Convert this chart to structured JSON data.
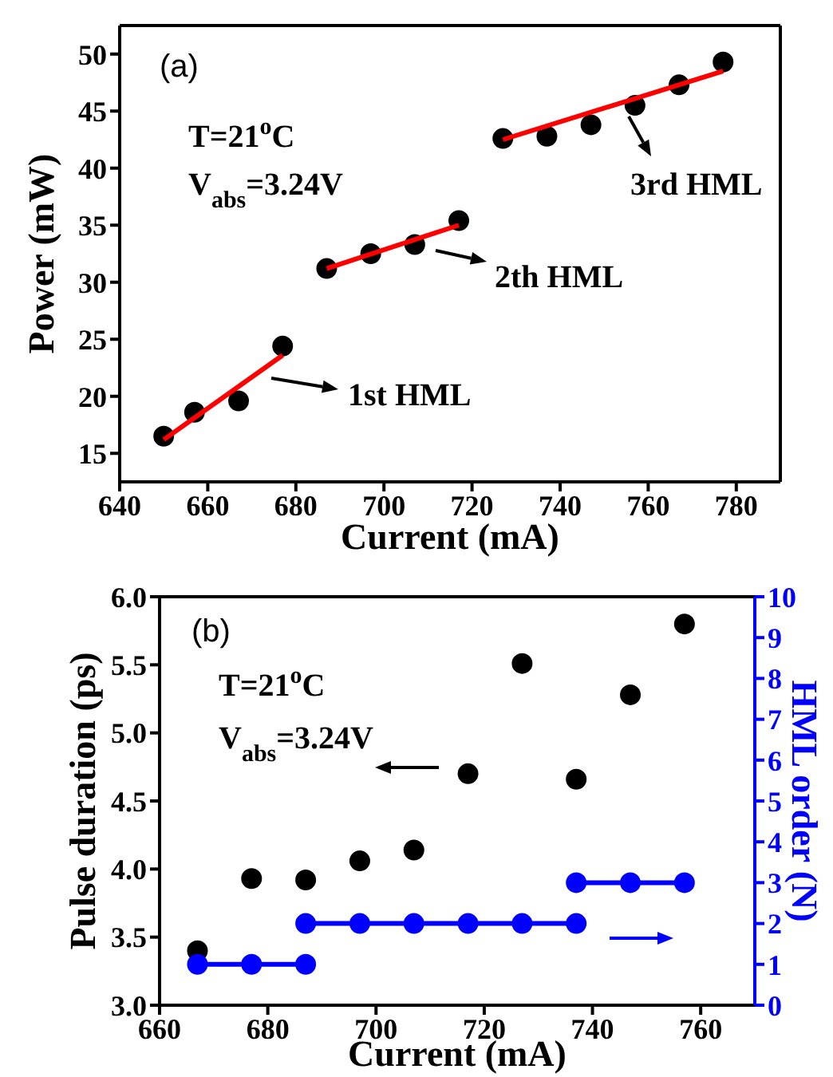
{
  "chart_data": [
    {
      "type": "scatter",
      "xlabel": "Current (mA)",
      "ylabel": "Power (mW)",
      "marker": "circle",
      "xlim": [
        640,
        790
      ],
      "xticks": [
        640,
        660,
        680,
        700,
        720,
        740,
        760,
        780
      ],
      "ylim": [
        12.5,
        52.5
      ],
      "yticks": [
        15,
        20,
        25,
        30,
        35,
        40,
        45,
        50
      ],
      "series": [
        {
          "type": "scatter",
          "color": "#000000",
          "x": [
            650,
            657,
            667,
            677,
            687,
            697,
            707,
            717,
            727,
            737,
            747,
            757,
            767,
            777
          ],
          "values": [
            16.5,
            18.6,
            19.6,
            24.4,
            31.2,
            32.5,
            33.3,
            35.4,
            42.6,
            42.8,
            43.8,
            45.5,
            47.3,
            49.3
          ]
        },
        {
          "type": "line",
          "marker": "none",
          "color": "#ff0000",
          "x": [
            650,
            677
          ],
          "values": [
            16.2,
            23.6
          ]
        },
        {
          "type": "line",
          "marker": "none",
          "color": "#ff0000",
          "x": [
            687,
            717
          ],
          "values": [
            31.2,
            35.0
          ]
        },
        {
          "type": "line",
          "marker": "none",
          "color": "#ff0000",
          "x": [
            727,
            777
          ],
          "values": [
            42.5,
            48.5
          ]
        }
      ],
      "annotations": [
        "(a)",
        "T=21$^{o}$C",
        "V$_{abs}$=3.24V",
        "1st HML",
        "2th HML",
        "3rd HML"
      ]
    },
    {
      "type": "scatter",
      "xlabel": "Current (mA)",
      "ylabel": "Pulse duration (ps)",
      "y2label": "HML order (N)",
      "marker": "circle",
      "xlim": [
        660,
        770
      ],
      "xticks": [
        660,
        680,
        700,
        720,
        740,
        760
      ],
      "ylim": [
        3,
        6
      ],
      "yticks": [
        {
          "value": 3,
          "label": "3.0"
        },
        3.5,
        {
          "value": 4,
          "label": "4.0"
        },
        4.5,
        {
          "value": 5,
          "label": "5.0"
        },
        5.5,
        {
          "value": 6,
          "label": "6.0"
        }
      ],
      "y2lim": [
        0,
        10
      ],
      "y2ticks": [
        0,
        1,
        2,
        3,
        4,
        5,
        6,
        7,
        8,
        9,
        10
      ],
      "series": [
        {
          "type": "scatter",
          "color": "#000000",
          "x": [
            667,
            677,
            687,
            697,
            707,
            717,
            727,
            737,
            747,
            757
          ],
          "values": [
            3.4,
            3.93,
            3.92,
            4.06,
            4.14,
            4.7,
            5.51,
            4.66,
            5.28,
            5.8
          ]
        },
        {
          "type": "line",
          "axis": "y2",
          "color": "#0000ff",
          "x": [
            667,
            677,
            687
          ],
          "values": [
            1,
            1,
            1
          ]
        },
        {
          "type": "line",
          "axis": "y2",
          "color": "#0000ff",
          "x": [
            687,
            697,
            707,
            717,
            727,
            737
          ],
          "values": [
            2,
            2,
            2,
            2,
            2,
            2
          ]
        },
        {
          "type": "line",
          "axis": "y2",
          "color": "#0000ff",
          "x": [
            737,
            747,
            757
          ],
          "values": [
            3,
            3,
            3
          ]
        }
      ],
      "annotations": [
        "(b)",
        "T=21$^{o}$C",
        "V$_{abs}$=3.24V"
      ]
    }
  ]
}
